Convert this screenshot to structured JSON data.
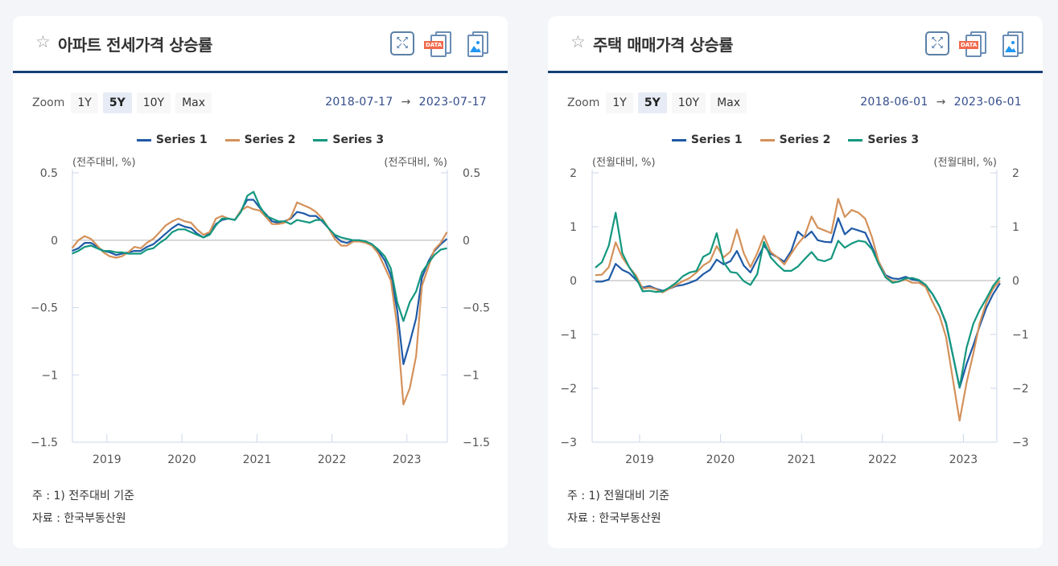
{
  "colors": {
    "series1": "#1f5aa6",
    "series2": "#d4915a",
    "series3": "#13977f",
    "header_rule": "#163f73"
  },
  "panels": [
    {
      "title": "아파트 전세가격 상승률",
      "icons": [
        "star-icon",
        "fullscreen-icon",
        "data-download-icon",
        "image-download-icon"
      ],
      "data_icon_label": "DATA",
      "zoom": {
        "label": "Zoom",
        "options": [
          "1Y",
          "5Y",
          "10Y",
          "Max"
        ],
        "selected": "5Y"
      },
      "range": {
        "from": "2018-07-17",
        "arrow": "→",
        "to": "2023-07-17"
      },
      "notes": [
        "주 : 1)  전주대비 기준",
        "자료 :  한국부동산원"
      ],
      "chart_data": {
        "type": "line",
        "legend": [
          "Series 1",
          "Series 2",
          "Series 3"
        ],
        "legend_position": "top",
        "ylabel_left": "(전주대비, %)",
        "ylabel_right": "(전주대비, %)",
        "ylim": [
          -1.5,
          0.5
        ],
        "yticks": [
          "0.5",
          "0",
          "−0.5",
          "−1",
          "−1.5"
        ],
        "ytick_values": [
          0.5,
          0,
          -0.5,
          -1,
          -1.5
        ],
        "xlim": [
          "2018-07-17",
          "2023-07-17"
        ],
        "xticks": [
          "2019",
          "2020",
          "2021",
          "2022",
          "2023"
        ],
        "x": [
          "2018-07",
          "2018-08",
          "2018-09",
          "2018-10",
          "2018-11",
          "2018-12",
          "2019-01",
          "2019-02",
          "2019-03",
          "2019-04",
          "2019-05",
          "2019-06",
          "2019-07",
          "2019-08",
          "2019-09",
          "2019-10",
          "2019-11",
          "2019-12",
          "2020-01",
          "2020-02",
          "2020-03",
          "2020-04",
          "2020-05",
          "2020-06",
          "2020-07",
          "2020-08",
          "2020-09",
          "2020-10",
          "2020-11",
          "2020-12",
          "2021-01",
          "2021-02",
          "2021-03",
          "2021-04",
          "2021-05",
          "2021-06",
          "2021-07",
          "2021-08",
          "2021-09",
          "2021-10",
          "2021-11",
          "2021-12",
          "2022-01",
          "2022-02",
          "2022-03",
          "2022-04",
          "2022-05",
          "2022-06",
          "2022-07",
          "2022-08",
          "2022-09",
          "2022-10",
          "2022-11",
          "2022-12",
          "2023-01",
          "2023-02",
          "2023-03",
          "2023-04",
          "2023-05",
          "2023-06",
          "2023-07"
        ],
        "series": [
          {
            "name": "Series 1",
            "values": [
              -0.08,
              -0.06,
              -0.02,
              -0.02,
              -0.05,
              -0.08,
              -0.09,
              -0.11,
              -0.1,
              -0.09,
              -0.08,
              -0.08,
              -0.05,
              -0.03,
              0.01,
              0.05,
              0.09,
              0.12,
              0.1,
              0.09,
              0.05,
              0.02,
              0.05,
              0.12,
              0.15,
              0.16,
              0.15,
              0.22,
              0.3,
              0.3,
              0.24,
              0.19,
              0.14,
              0.13,
              0.14,
              0.16,
              0.21,
              0.2,
              0.18,
              0.18,
              0.14,
              0.09,
              0.03,
              -0.01,
              -0.02,
              0,
              0,
              -0.01,
              -0.03,
              -0.08,
              -0.15,
              -0.26,
              -0.52,
              -0.92,
              -0.76,
              -0.58,
              -0.28,
              -0.16,
              -0.08,
              -0.03,
              0.01
            ]
          },
          {
            "name": "Series 2",
            "values": [
              -0.06,
              0,
              0.03,
              0.01,
              -0.04,
              -0.09,
              -0.12,
              -0.13,
              -0.12,
              -0.09,
              -0.05,
              -0.06,
              -0.02,
              0.01,
              0.06,
              0.11,
              0.14,
              0.16,
              0.14,
              0.13,
              0.08,
              0.04,
              0.06,
              0.16,
              0.18,
              0.16,
              0.15,
              0.22,
              0.25,
              0.23,
              0.22,
              0.17,
              0.12,
              0.12,
              0.13,
              0.17,
              0.28,
              0.26,
              0.24,
              0.21,
              0.16,
              0.09,
              0.01,
              -0.04,
              -0.04,
              -0.01,
              -0.01,
              -0.02,
              -0.04,
              -0.1,
              -0.2,
              -0.3,
              -0.64,
              -1.22,
              -1.1,
              -0.86,
              -0.34,
              -0.2,
              -0.07,
              -0.02,
              0.06
            ]
          },
          {
            "name": "Series 3",
            "values": [
              -0.1,
              -0.08,
              -0.05,
              -0.04,
              -0.06,
              -0.08,
              -0.08,
              -0.09,
              -0.09,
              -0.1,
              -0.1,
              -0.1,
              -0.07,
              -0.06,
              -0.02,
              0.01,
              0.06,
              0.08,
              0.08,
              0.06,
              0.04,
              0.02,
              0.04,
              0.11,
              0.16,
              0.16,
              0.15,
              0.21,
              0.33,
              0.36,
              0.25,
              0.18,
              0.16,
              0.14,
              0.14,
              0.12,
              0.15,
              0.14,
              0.13,
              0.15,
              0.15,
              0.09,
              0.04,
              0.02,
              0.01,
              0,
              0,
              -0.01,
              -0.03,
              -0.07,
              -0.12,
              -0.21,
              -0.46,
              -0.6,
              -0.46,
              -0.38,
              -0.24,
              -0.17,
              -0.11,
              -0.07,
              -0.06
            ]
          }
        ]
      }
    },
    {
      "title": "주택 매매가격 상승률",
      "icons": [
        "star-icon",
        "fullscreen-icon",
        "data-download-icon",
        "image-download-icon"
      ],
      "data_icon_label": "DATA",
      "zoom": {
        "label": "Zoom",
        "options": [
          "1Y",
          "5Y",
          "10Y",
          "Max"
        ],
        "selected": "5Y"
      },
      "range": {
        "from": "2018-06-01",
        "arrow": "→",
        "to": "2023-06-01"
      },
      "notes": [
        "주 : 1)  전월대비 기준",
        "자료 :  한국부동산원"
      ],
      "chart_data": {
        "type": "line",
        "legend": [
          "Series 1",
          "Series 2",
          "Series 3"
        ],
        "legend_position": "top",
        "ylabel_left": "(전월대비, %)",
        "ylabel_right": "(전월대비, %)",
        "ylim": [
          -3,
          2
        ],
        "yticks": [
          "2",
          "1",
          "0",
          "−1",
          "−2",
          "−3"
        ],
        "ytick_values": [
          2,
          1,
          0,
          -1,
          -2,
          -3
        ],
        "xlim": [
          "2018-06-01",
          "2023-06-01"
        ],
        "xticks": [
          "2019",
          "2020",
          "2021",
          "2022",
          "2023"
        ],
        "x": [
          "2018-06",
          "2018-07",
          "2018-08",
          "2018-09",
          "2018-10",
          "2018-11",
          "2018-12",
          "2019-01",
          "2019-02",
          "2019-03",
          "2019-04",
          "2019-05",
          "2019-06",
          "2019-07",
          "2019-08",
          "2019-09",
          "2019-10",
          "2019-11",
          "2019-12",
          "2020-01",
          "2020-02",
          "2020-03",
          "2020-04",
          "2020-05",
          "2020-06",
          "2020-07",
          "2020-08",
          "2020-09",
          "2020-10",
          "2020-11",
          "2020-12",
          "2021-01",
          "2021-02",
          "2021-03",
          "2021-04",
          "2021-05",
          "2021-06",
          "2021-07",
          "2021-08",
          "2021-09",
          "2021-10",
          "2021-11",
          "2021-12",
          "2022-01",
          "2022-02",
          "2022-03",
          "2022-04",
          "2022-05",
          "2022-06",
          "2022-07",
          "2022-08",
          "2022-09",
          "2022-10",
          "2022-11",
          "2022-12",
          "2023-01",
          "2023-02",
          "2023-03",
          "2023-04",
          "2023-05",
          "2023-06"
        ],
        "series": [
          {
            "name": "Series 1",
            "values": [
              -0.02,
              -0.02,
              0.02,
              0.31,
              0.2,
              0.14,
              0.02,
              -0.13,
              -0.1,
              -0.15,
              -0.19,
              -0.15,
              -0.1,
              -0.08,
              -0.04,
              0.01,
              0.12,
              0.2,
              0.39,
              0.3,
              0.36,
              0.55,
              0.28,
              0.15,
              0.4,
              0.65,
              0.5,
              0.43,
              0.35,
              0.55,
              0.91,
              0.8,
              0.91,
              0.75,
              0.72,
              0.71,
              1.16,
              0.86,
              0.97,
              0.93,
              0.89,
              0.62,
              0.35,
              0.1,
              0.04,
              0.03,
              0.07,
              0.02,
              0,
              -0.1,
              -0.25,
              -0.48,
              -0.8,
              -1.4,
              -1.99,
              -1.55,
              -1.2,
              -0.85,
              -0.5,
              -0.25,
              -0.05
            ]
          },
          {
            "name": "Series 2",
            "values": [
              0.1,
              0.11,
              0.25,
              0.71,
              0.43,
              0.25,
              0.1,
              -0.15,
              -0.13,
              -0.16,
              -0.22,
              -0.15,
              -0.08,
              -0.01,
              0.05,
              0.15,
              0.28,
              0.36,
              0.64,
              0.43,
              0.54,
              0.95,
              0.51,
              0.25,
              0.51,
              0.83,
              0.53,
              0.43,
              0.3,
              0.5,
              0.68,
              0.83,
              1.19,
              0.98,
              0.93,
              0.88,
              1.52,
              1.18,
              1.31,
              1.26,
              1.15,
              0.8,
              0.35,
              0.08,
              -0.02,
              -0.02,
              0.02,
              -0.04,
              -0.04,
              -0.12,
              -0.4,
              -0.65,
              -1.05,
              -1.85,
              -2.6,
              -1.9,
              -1.35,
              -0.8,
              -0.4,
              -0.15,
              0
            ]
          },
          {
            "name": "Series 3",
            "values": [
              0.24,
              0.34,
              0.65,
              1.26,
              0.51,
              0.25,
              0.06,
              -0.2,
              -0.19,
              -0.21,
              -0.2,
              -0.13,
              -0.04,
              0.08,
              0.15,
              0.18,
              0.44,
              0.51,
              0.88,
              0.34,
              0.16,
              0.14,
              -0.01,
              -0.08,
              0.12,
              0.72,
              0.43,
              0.29,
              0.18,
              0.18,
              0.26,
              0.4,
              0.53,
              0.39,
              0.36,
              0.41,
              0.74,
              0.61,
              0.69,
              0.74,
              0.72,
              0.58,
              0.3,
              0.06,
              -0.04,
              -0.02,
              0.04,
              0.05,
              0.01,
              -0.08,
              -0.25,
              -0.48,
              -0.78,
              -1.4,
              -1.98,
              -1.25,
              -0.8,
              -0.55,
              -0.33,
              -0.1,
              0.06
            ]
          }
        ]
      }
    }
  ]
}
